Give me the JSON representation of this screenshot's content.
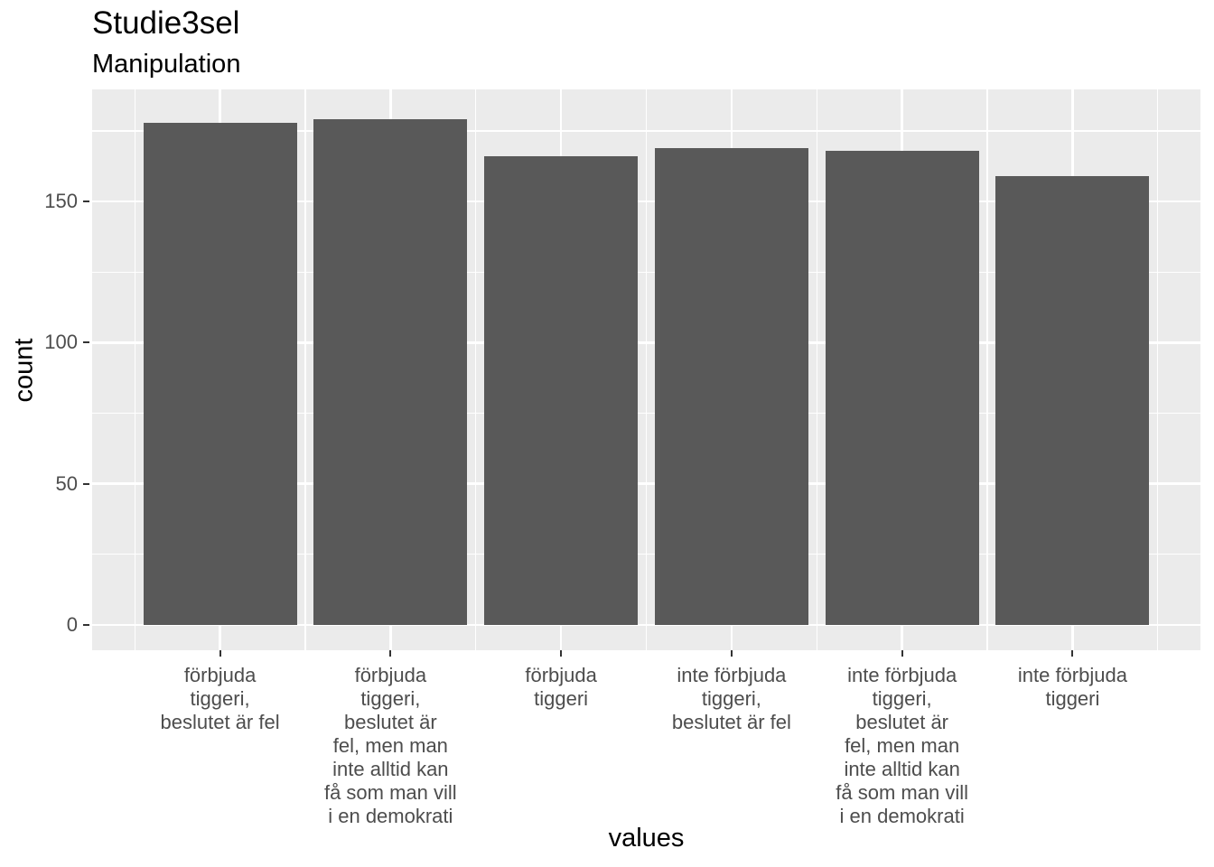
{
  "chart_data": {
    "type": "bar",
    "title": "Studie3sel",
    "subtitle": "Manipulation",
    "xlabel": "values",
    "ylabel": "count",
    "categories": [
      "förbjuda\ntiggeri,\nbeslutet är fel",
      "förbjuda\ntiggeri,\nbeslutet är\nfel, men man\ninte alltid kan\nfå som man vill\ni en demokrati",
      "förbjuda\ntiggeri",
      "inte förbjuda\ntiggeri,\nbeslutet är fel",
      "inte förbjuda\ntiggeri,\nbeslutet är\nfel, men man\ninte alltid kan\nfå som man vill\ni en demokrati",
      "inte förbjuda\ntiggeri"
    ],
    "values": [
      178,
      179,
      166,
      169,
      168,
      159
    ],
    "y_major_ticks": [
      0,
      50,
      100,
      150
    ],
    "y_minor_ticks": [
      25,
      75,
      125,
      175
    ],
    "ylim": [
      -9,
      189.7
    ],
    "bar_rel_width": 0.9,
    "edge_expansion": 0.75,
    "grid": "on",
    "legend": "none",
    "colors": {
      "bar_fill": "#595959",
      "panel_bg": "#EBEBEB",
      "grid_line": "#FFFFFF",
      "tick_mark": "#333333",
      "axis_text": "#4D4D4D",
      "title_text": "#000000"
    }
  }
}
